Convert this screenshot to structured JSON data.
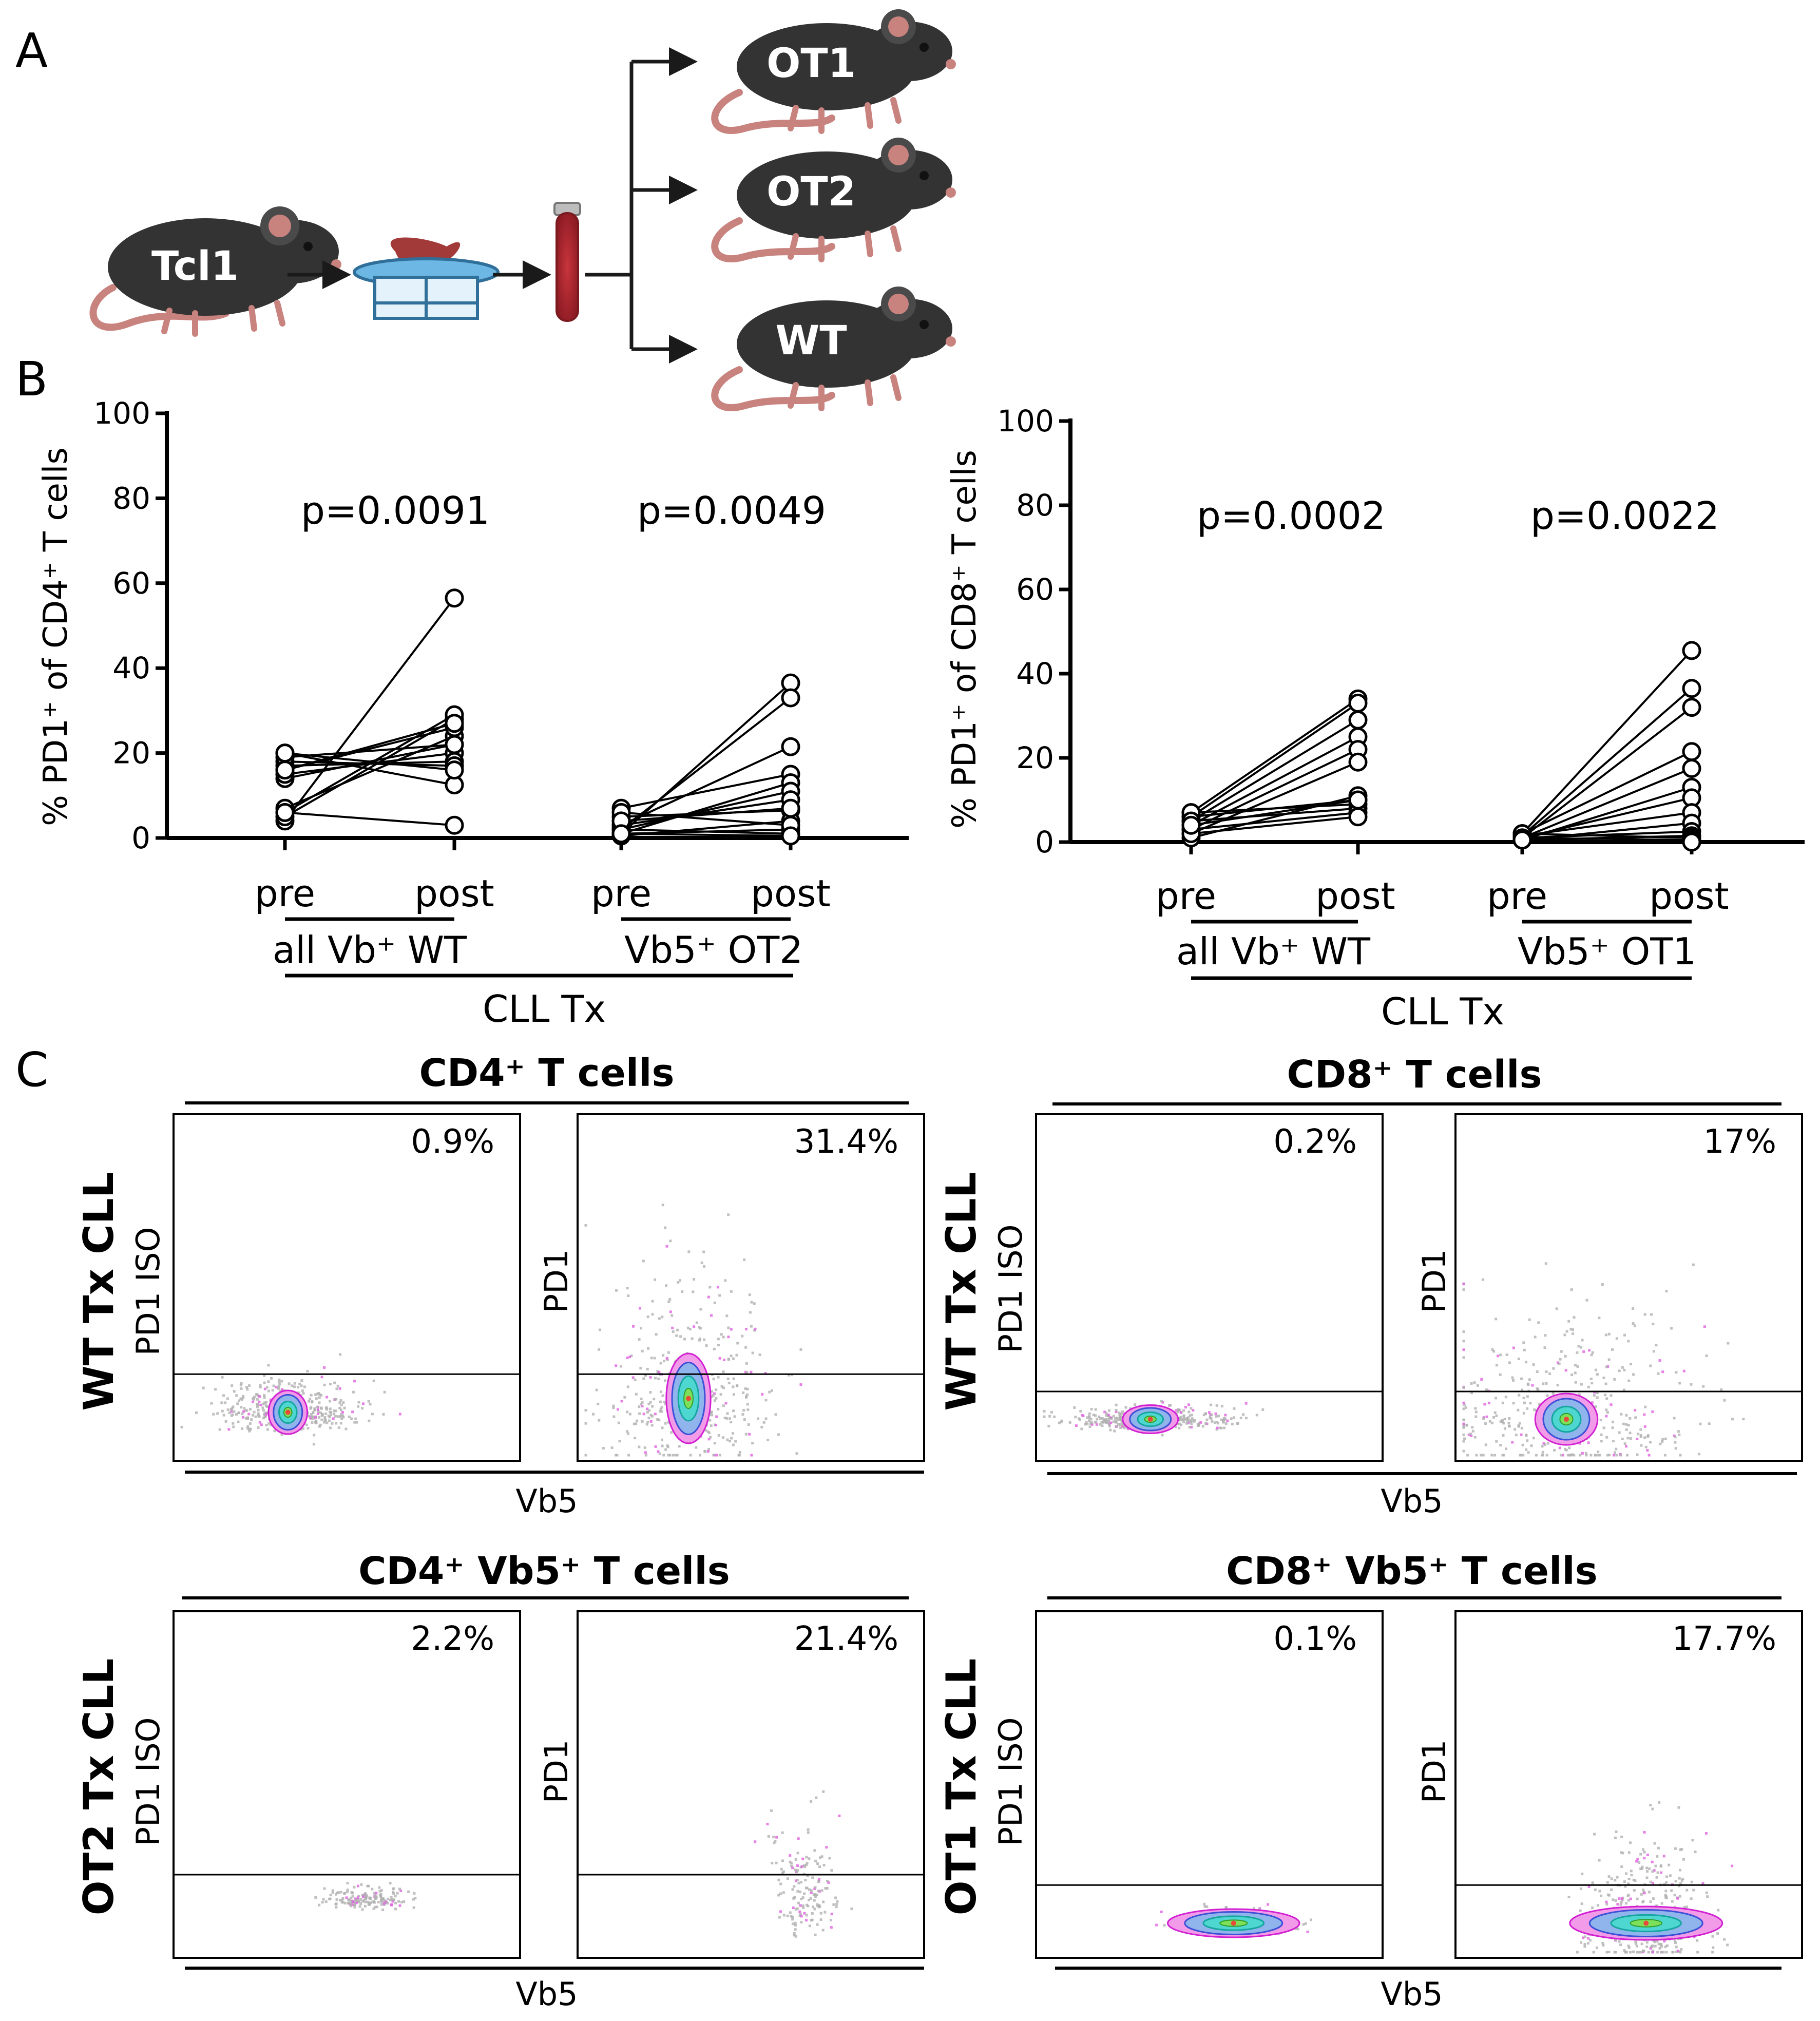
{
  "figure": {
    "panel_labels": {
      "a": "A",
      "b": "B",
      "c": "C"
    },
    "schematic": {
      "donor_mouse": "Tcl1",
      "recipient_mice": [
        "OT1",
        "OT2",
        "WT"
      ],
      "icons": [
        "mouse-icon",
        "spleen-icon",
        "cell-strainer-icon",
        "blood-tube-icon",
        "arrow-icon"
      ]
    },
    "chart_left": {
      "ylabel_text": "% PD1⁺ of CD4⁺ T cells",
      "y_ticks": [
        "0",
        "20",
        "40",
        "60",
        "80",
        "100"
      ],
      "pvalues": [
        "p=0.0091",
        "p=0.0049"
      ],
      "x_pre": "pre",
      "x_post": "post",
      "group1": "all Vb⁺ WT",
      "group2": "Vb5⁺ OT2",
      "bottom": "CLL Tx"
    },
    "chart_right": {
      "ylabel_text": "% PD1⁺ of CD8⁺ T cells",
      "y_ticks": [
        "0",
        "20",
        "40",
        "60",
        "80",
        "100"
      ],
      "pvalues": [
        "p=0.0002",
        "p=0.0022"
      ],
      "x_pre": "pre",
      "x_post": "post",
      "group1": "all Vb⁺ WT",
      "group2": "Vb5⁺ OT1",
      "bottom": "CLL Tx"
    },
    "flow": {
      "titles": [
        "CD4⁺ T cells",
        "CD8⁺ T cells",
        "CD4⁺ Vb5⁺ T cells",
        "CD8⁺ Vb5⁺ T cells"
      ],
      "row_labels": [
        "WT Tx CLL",
        "WT Tx CLL",
        "OT2 Tx CLL",
        "OT1 Tx CLL"
      ],
      "iso_label": "PD1 ISO",
      "pd1_label": "PD1",
      "x_label": "Vb5",
      "percents": [
        "0.9%",
        "31.4%",
        "0.2%",
        "17%",
        "2.2%",
        "21.4%",
        "0.1%",
        "17.7%"
      ]
    }
  },
  "chart_data": [
    {
      "type": "line",
      "title": "",
      "ylabel": "% PD1+ of CD4+ T cells",
      "xlabel": "CLL Tx",
      "ylim": [
        0,
        100
      ],
      "groups": [
        {
          "name": "all Vb+ WT",
          "pvalue": "p=0.0091",
          "pairs": [
            [
              4,
              56.5
            ],
            [
              5,
              28
            ],
            [
              6,
              29
            ],
            [
              7,
              24
            ],
            [
              14,
              22
            ],
            [
              15,
              20
            ],
            [
              16,
              26
            ],
            [
              17,
              18
            ],
            [
              18,
              17
            ],
            [
              19,
              22
            ],
            [
              20,
              12.5
            ],
            [
              16,
              27
            ],
            [
              20,
              16
            ],
            [
              6,
              3
            ]
          ]
        },
        {
          "name": "Vb5+ OT2",
          "pvalue": "p=0.0049",
          "pairs": [
            [
              1,
              36.5
            ],
            [
              2,
              33
            ],
            [
              3,
              21.5
            ],
            [
              7,
              15
            ],
            [
              1,
              13
            ],
            [
              2,
              11
            ],
            [
              3,
              9
            ],
            [
              5,
              6.5
            ],
            [
              0.5,
              4
            ],
            [
              1,
              2
            ],
            [
              2,
              1
            ],
            [
              6,
              3
            ],
            [
              4,
              7
            ],
            [
              1,
              0.5
            ]
          ]
        }
      ]
    },
    {
      "type": "line",
      "title": "",
      "ylabel": "% PD1+ of CD8+ T cells",
      "xlabel": "CLL Tx",
      "ylim": [
        0,
        100
      ],
      "groups": [
        {
          "name": "all Vb+ WT",
          "pvalue": "p=0.0002",
          "pairs": [
            [
              7,
              34
            ],
            [
              6,
              33
            ],
            [
              5,
              29
            ],
            [
              4,
              25
            ],
            [
              3,
              22
            ],
            [
              2,
              19
            ],
            [
              1,
              11
            ],
            [
              6,
              10
            ],
            [
              7,
              9
            ],
            [
              5,
              8
            ],
            [
              3,
              7
            ],
            [
              2,
              6
            ],
            [
              4,
              10
            ]
          ]
        },
        {
          "name": "Vb5+ OT1",
          "pvalue": "p=0.0022",
          "pairs": [
            [
              2,
              45.5
            ],
            [
              1.5,
              36.5
            ],
            [
              1,
              32
            ],
            [
              2,
              21.5
            ],
            [
              1,
              17.5
            ],
            [
              0.5,
              13
            ],
            [
              1,
              10.5
            ],
            [
              1.5,
              7
            ],
            [
              0.5,
              4.5
            ],
            [
              1,
              2.5
            ],
            [
              0.5,
              1.5
            ],
            [
              2,
              1
            ],
            [
              1,
              0.5
            ],
            [
              0.5,
              0
            ]
          ]
        }
      ]
    }
  ]
}
